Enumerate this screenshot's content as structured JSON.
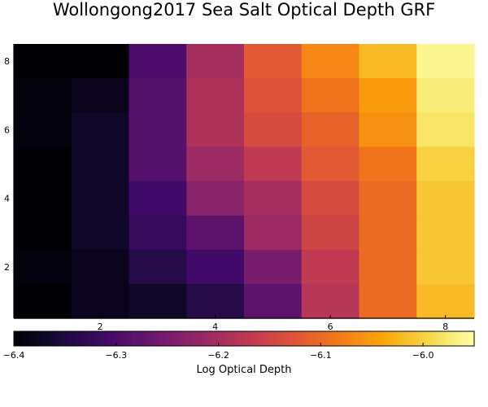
{
  "chart_data": {
    "type": "heatmap",
    "title": "Wollongong2017 Sea Salt Optical Depth GRF",
    "xlabel": "",
    "ylabel": "",
    "x_ticks": [
      2,
      4,
      6,
      8
    ],
    "y_ticks": [
      2,
      4,
      6,
      8
    ],
    "xlim": [
      0.5,
      8.5
    ],
    "ylim": [
      0.5,
      8.5
    ],
    "rows_y_descending": [
      8,
      7,
      6,
      5,
      4,
      3,
      2,
      1
    ],
    "columns_x": [
      1,
      2,
      3,
      4,
      5,
      6,
      7,
      8
    ],
    "values": [
      [
        -6.4,
        -6.4,
        -6.3,
        -6.2,
        -6.12,
        -6.07,
        -6.02,
        -5.96
      ],
      [
        -6.39,
        -6.38,
        -6.29,
        -6.19,
        -6.13,
        -6.09,
        -6.05,
        -5.97
      ],
      [
        -6.39,
        -6.37,
        -6.29,
        -6.19,
        -6.14,
        -6.11,
        -6.06,
        -5.98
      ],
      [
        -6.4,
        -6.37,
        -6.29,
        -6.21,
        -6.17,
        -6.12,
        -6.09,
        -6.0
      ],
      [
        -6.4,
        -6.37,
        -6.31,
        -6.23,
        -6.2,
        -6.14,
        -6.1,
        -6.01
      ],
      [
        -6.4,
        -6.37,
        -6.32,
        -6.28,
        -6.21,
        -6.15,
        -6.1,
        -6.01
      ],
      [
        -6.39,
        -6.38,
        -6.34,
        -6.31,
        -6.25,
        -6.17,
        -6.1,
        -6.01
      ],
      [
        -6.4,
        -6.38,
        -6.37,
        -6.34,
        -6.28,
        -6.18,
        -6.1,
        -6.02
      ]
    ],
    "colorbar": {
      "label": "Log Optical Depth",
      "range": [
        -6.4,
        -5.95
      ],
      "ticks": [
        -6.4,
        -6.3,
        -6.2,
        -6.1,
        -6.0
      ],
      "tick_labels": [
        "−6.4",
        "−6.3",
        "−6.2",
        "−6.1",
        "−6.0"
      ],
      "colormap": "inferno",
      "placement": "bottom"
    },
    "grid": false
  }
}
